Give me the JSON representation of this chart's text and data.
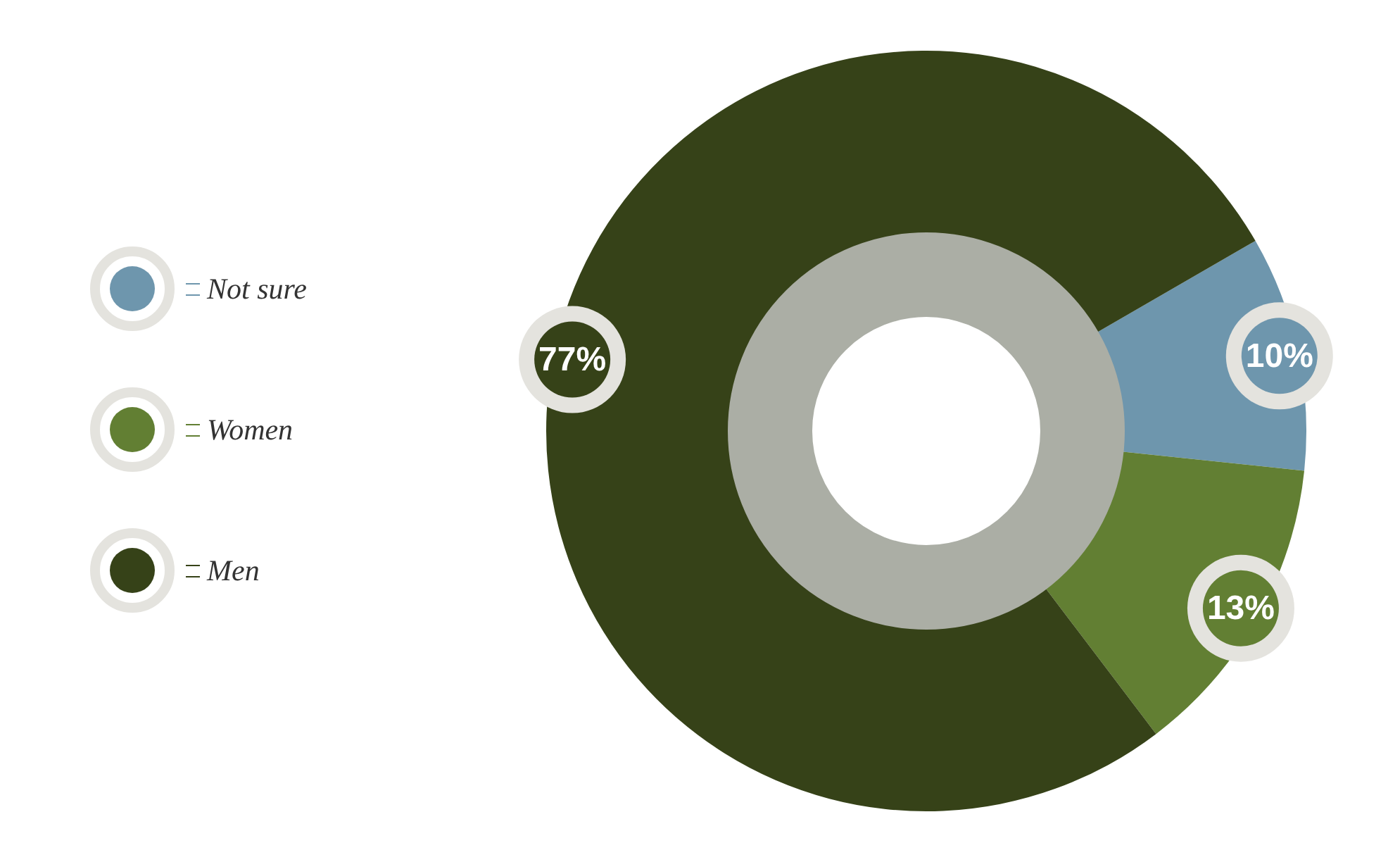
{
  "chart_data": {
    "type": "donut",
    "categories": [
      "Not sure",
      "Women",
      "Men"
    ],
    "values": [
      10,
      13,
      77
    ],
    "colors": [
      "#6e96ad",
      "#627f33",
      "#364218"
    ],
    "value_labels": [
      "10%",
      "13%",
      "77%"
    ],
    "legend": "left"
  }
}
